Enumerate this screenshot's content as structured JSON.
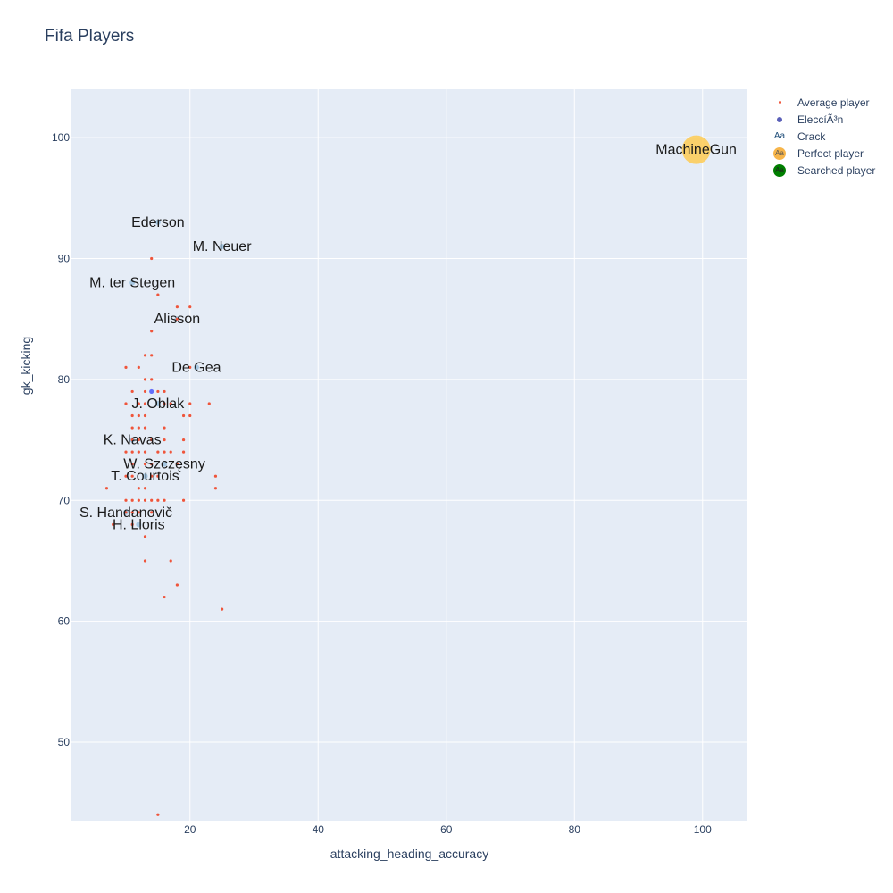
{
  "chart_data": {
    "type": "scatter",
    "title": "Fifa Players",
    "xlabel": "attacking_heading_accuracy",
    "ylabel": "gk_kicking",
    "xlim": [
      1.5,
      107
    ],
    "ylim": [
      43.5,
      104
    ],
    "xticks": [
      20,
      40,
      60,
      80,
      100
    ],
    "yticks": [
      50,
      60,
      70,
      80,
      90,
      100
    ],
    "grid": true,
    "legend_position": "top-right",
    "colors": {
      "plot_bg": "#e5ecf6",
      "grid": "#ffffff",
      "average": "#ef553b",
      "eleccion": "#636efa",
      "crack": "#1f4e79",
      "perfect": "#fecb52",
      "searched": "#007f00"
    },
    "series": [
      {
        "name": "Average player",
        "points": [
          [
            14,
            90
          ],
          [
            15,
            87
          ],
          [
            18,
            86
          ],
          [
            20,
            86
          ],
          [
            18,
            85
          ],
          [
            14,
            84
          ],
          [
            13,
            82
          ],
          [
            14,
            82
          ],
          [
            10,
            81
          ],
          [
            12,
            81
          ],
          [
            20,
            81
          ],
          [
            13,
            80
          ],
          [
            14,
            80
          ],
          [
            11,
            79
          ],
          [
            13,
            79
          ],
          [
            15,
            79
          ],
          [
            16,
            79
          ],
          [
            10,
            78
          ],
          [
            12,
            78
          ],
          [
            13,
            78
          ],
          [
            16,
            78
          ],
          [
            17,
            78
          ],
          [
            20,
            78
          ],
          [
            23,
            78
          ],
          [
            11,
            77
          ],
          [
            12,
            77
          ],
          [
            13,
            77
          ],
          [
            19,
            77
          ],
          [
            20,
            77
          ],
          [
            11,
            76
          ],
          [
            12,
            76
          ],
          [
            13,
            76
          ],
          [
            16,
            76
          ],
          [
            11,
            75
          ],
          [
            12,
            75
          ],
          [
            14,
            75
          ],
          [
            16,
            75
          ],
          [
            19,
            75
          ],
          [
            10,
            74
          ],
          [
            11,
            74
          ],
          [
            12,
            74
          ],
          [
            13,
            74
          ],
          [
            15,
            74
          ],
          [
            16,
            74
          ],
          [
            17,
            74
          ],
          [
            19,
            74
          ],
          [
            11,
            73
          ],
          [
            13,
            73
          ],
          [
            14,
            73
          ],
          [
            18,
            73
          ],
          [
            10,
            72
          ],
          [
            11,
            72
          ],
          [
            14,
            72
          ],
          [
            15,
            72
          ],
          [
            24,
            72
          ],
          [
            7,
            71
          ],
          [
            12,
            71
          ],
          [
            13,
            71
          ],
          [
            24,
            71
          ],
          [
            10,
            70
          ],
          [
            11,
            70
          ],
          [
            12,
            70
          ],
          [
            13,
            70
          ],
          [
            14,
            70
          ],
          [
            15,
            70
          ],
          [
            16,
            70
          ],
          [
            19,
            70
          ],
          [
            10,
            69
          ],
          [
            11,
            69
          ],
          [
            12,
            69
          ],
          [
            14,
            69
          ],
          [
            8,
            68
          ],
          [
            11,
            68
          ],
          [
            13,
            67
          ],
          [
            13,
            65
          ],
          [
            17,
            65
          ],
          [
            18,
            63
          ],
          [
            16,
            62
          ],
          [
            25,
            61
          ],
          [
            15,
            44
          ]
        ]
      },
      {
        "name": "EleccíÃ³n",
        "points": [
          [
            14,
            79
          ]
        ]
      },
      {
        "name": "Crack",
        "labels": [
          {
            "text": "Ederson",
            "x": 15,
            "y": 93
          },
          {
            "text": "M. Neuer",
            "x": 25,
            "y": 91
          },
          {
            "text": "M. ter Stegen",
            "x": 11,
            "y": 88
          },
          {
            "text": "Alisson",
            "x": 18,
            "y": 85
          },
          {
            "text": "De Gea",
            "x": 21,
            "y": 81
          },
          {
            "text": "J. Oblak",
            "x": 15,
            "y": 78
          },
          {
            "text": "K. Navas",
            "x": 11,
            "y": 75
          },
          {
            "text": "W. Szczęsny",
            "x": 16,
            "y": 73
          },
          {
            "text": "T. Courtois",
            "x": 13,
            "y": 72
          },
          {
            "text": "S. Handanovič",
            "x": 10,
            "y": 69
          },
          {
            "text": "H. Lloris",
            "x": 12,
            "y": 68
          }
        ]
      },
      {
        "name": "Perfect player",
        "labels": [
          {
            "text": "MachineGun",
            "x": 99,
            "y": 99
          }
        ]
      },
      {
        "name": "Searched player",
        "points": []
      }
    ]
  },
  "legend": {
    "items": [
      {
        "label": "Average player",
        "glyph": ""
      },
      {
        "label": "EleccíÃ³n",
        "glyph": ""
      },
      {
        "label": "Crack",
        "glyph": "Aa"
      },
      {
        "label": "Perfect player",
        "glyph": "Aa"
      },
      {
        "label": "Searched player",
        "glyph": "Aa"
      }
    ]
  }
}
